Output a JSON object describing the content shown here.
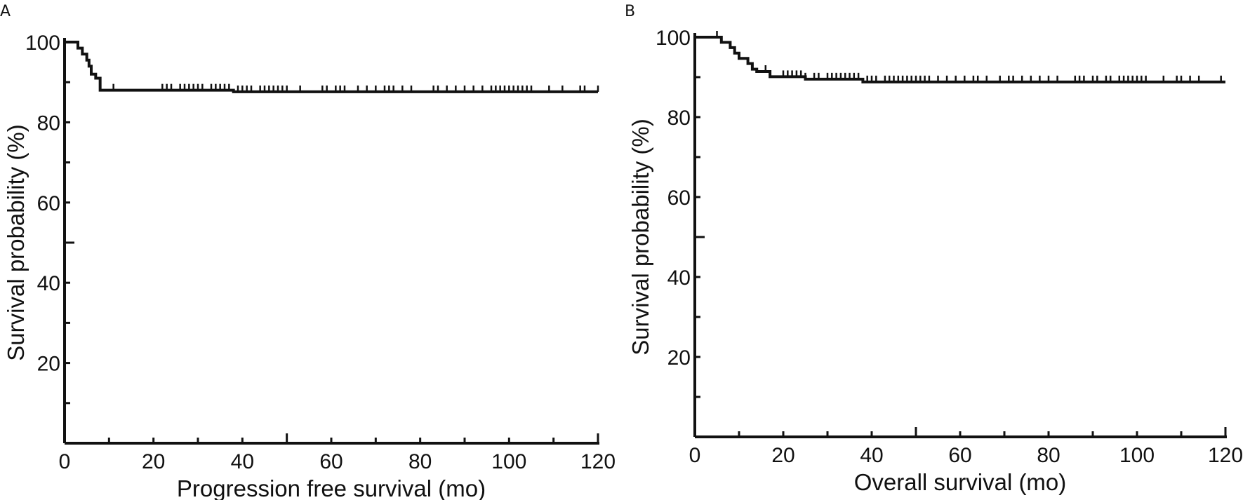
{
  "chart_data": [
    {
      "type": "line",
      "panel_label": "A",
      "title": "",
      "xlabel": "Progression free survival (mo)",
      "ylabel": "Survival probability (%)",
      "xlim": [
        0,
        120
      ],
      "ylim": [
        0,
        100
      ],
      "xticks": [
        0,
        20,
        40,
        60,
        80,
        100,
        120
      ],
      "yticks": [
        20,
        40,
        60,
        80,
        100
      ],
      "grid": false,
      "series": [
        {
          "steps": [
            [
              0,
              100
            ],
            [
              2.5,
              100
            ],
            [
              3,
              98.5
            ],
            [
              4,
              97
            ],
            [
              5,
              95.5
            ],
            [
              5.5,
              94
            ],
            [
              6,
              92
            ],
            [
              7,
              91
            ],
            [
              8,
              88
            ],
            [
              37,
              88
            ],
            [
              38,
              87.6
            ],
            [
              120,
              87.6
            ]
          ],
          "censor_x": [
            11,
            22,
            23,
            24,
            26,
            27,
            28,
            29,
            30,
            31,
            33,
            34,
            35,
            36,
            37,
            39,
            40,
            41,
            42,
            44,
            45,
            46,
            47,
            48,
            49,
            50,
            53,
            58,
            59,
            61,
            62,
            63,
            66,
            68,
            70,
            72,
            73,
            74,
            76,
            78,
            83,
            84,
            86,
            88,
            90,
            92,
            94,
            96,
            97,
            98,
            99,
            100,
            101,
            102,
            103,
            104,
            105,
            109,
            112,
            116,
            117,
            120
          ]
        }
      ]
    },
    {
      "type": "line",
      "panel_label": "B",
      "title": "",
      "xlabel": "Overall survival (mo)",
      "ylabel": "Survival probability (%)",
      "xlim": [
        0,
        120
      ],
      "ylim": [
        0,
        100
      ],
      "xticks": [
        0,
        20,
        40,
        60,
        80,
        100,
        120
      ],
      "yticks": [
        20,
        40,
        60,
        80,
        100
      ],
      "grid": false,
      "series": [
        {
          "steps": [
            [
              0,
              100
            ],
            [
              5,
              100
            ],
            [
              6,
              98.7
            ],
            [
              8,
              97.4
            ],
            [
              9,
              96
            ],
            [
              10,
              94.7
            ],
            [
              12,
              93.4
            ],
            [
              13,
              92
            ],
            [
              14,
              91.4
            ],
            [
              17,
              90.1
            ],
            [
              25,
              89.5
            ],
            [
              38,
              88.8
            ],
            [
              120,
              88.8
            ]
          ],
          "censor_x": [
            5,
            16,
            20,
            21,
            22,
            23,
            24,
            25,
            27,
            28,
            30,
            31,
            32,
            33,
            34,
            35,
            36,
            37,
            39,
            40,
            41,
            43,
            44,
            45,
            46,
            47,
            48,
            49,
            50,
            51,
            52,
            53,
            55,
            57,
            59,
            61,
            63,
            64,
            66,
            69,
            71,
            72,
            74,
            76,
            78,
            80,
            82,
            86,
            87,
            88,
            90,
            91,
            93,
            94,
            96,
            97,
            98,
            99,
            100,
            101,
            102,
            106,
            109,
            110,
            112,
            114,
            119
          ]
        }
      ]
    }
  ]
}
